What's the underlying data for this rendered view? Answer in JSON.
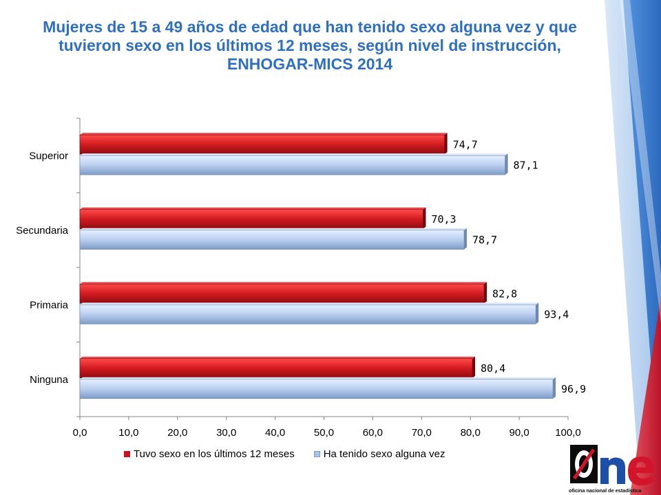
{
  "title": "Mujeres de 15 a 49 años de edad que han tenido sexo alguna vez y que tuvieron sexo en los últimos 12 meses, según nivel de instrucción, ENHOGAR-MICS 2014",
  "logo": {
    "wordmark": "one",
    "caption": "oficina nacional de estadística",
    "icon": "one-logo-icon"
  },
  "chart_data": {
    "type": "bar",
    "orientation": "horizontal",
    "title": "Mujeres de 15 a 49 años de edad que han tenido sexo alguna vez y que tuvieron sexo en los últimos 12 meses, según nivel de instrucción, ENHOGAR-MICS 2014",
    "categories": [
      "Superior",
      "Secundaria",
      "Primaria",
      "Ninguna"
    ],
    "series": [
      {
        "name": "Tuvo sexo en los últimos 12 meses",
        "color": "#c8141e",
        "values": [
          74.7,
          70.3,
          82.8,
          80.4
        ],
        "labels": [
          "74,7",
          "70,3",
          "82,8",
          "80,4"
        ]
      },
      {
        "name": "Ha tenido sexo alguna vez",
        "color": "#a8c4e8",
        "values": [
          87.1,
          78.7,
          93.4,
          96.9
        ],
        "labels": [
          "87,1",
          "78,7",
          "93,4",
          "96,9"
        ]
      }
    ],
    "xlim": [
      0,
      100
    ],
    "ticks": [
      0,
      10,
      20,
      30,
      40,
      50,
      60,
      70,
      80,
      90,
      100
    ],
    "tick_labels": [
      "0,0",
      "10,0",
      "20,0",
      "30,0",
      "40,0",
      "50,0",
      "60,0",
      "70,0",
      "80,0",
      "90,0",
      "100,0"
    ],
    "legend_position": "bottom",
    "grid": false
  }
}
